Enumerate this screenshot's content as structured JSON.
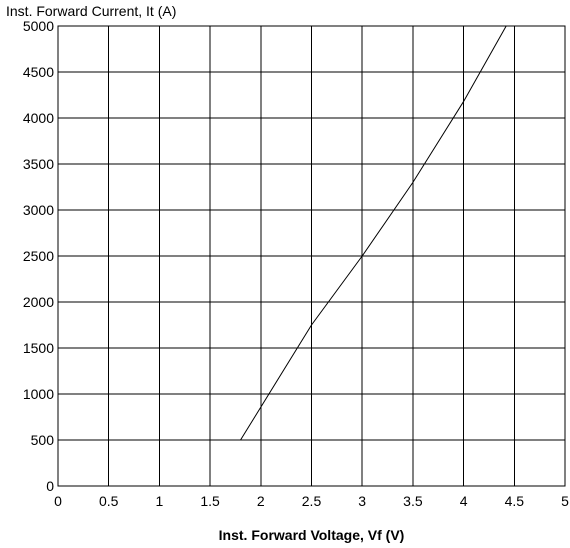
{
  "chart_data": {
    "type": "line",
    "title": "",
    "xlabel": "Inst. Forward Voltage, Vf (V)",
    "ylabel": "Inst. Forward Current, It (A)",
    "xlim": [
      0,
      5
    ],
    "ylim": [
      0,
      5000
    ],
    "x_ticks": [
      "0",
      "0.5",
      "1",
      "1.5",
      "2",
      "2.5",
      "3",
      "3.5",
      "4",
      "4.5",
      "5"
    ],
    "y_ticks": [
      "0",
      "500",
      "1000",
      "1500",
      "2000",
      "2500",
      "3000",
      "3500",
      "4000",
      "4500",
      "5000"
    ],
    "x_tick_values": [
      0,
      0.5,
      1,
      1.5,
      2,
      2.5,
      3,
      3.5,
      4,
      4.5,
      5
    ],
    "y_tick_values": [
      0,
      500,
      1000,
      1500,
      2000,
      2500,
      3000,
      3500,
      4000,
      4500,
      5000
    ],
    "grid": true,
    "legend": "none",
    "series": [
      {
        "color": "#000000",
        "x": [
          1.8,
          2.5,
          3.0,
          3.5,
          4.0,
          4.42
        ],
        "y": [
          500,
          1750,
          2500,
          3300,
          4180,
          5000
        ]
      }
    ]
  }
}
